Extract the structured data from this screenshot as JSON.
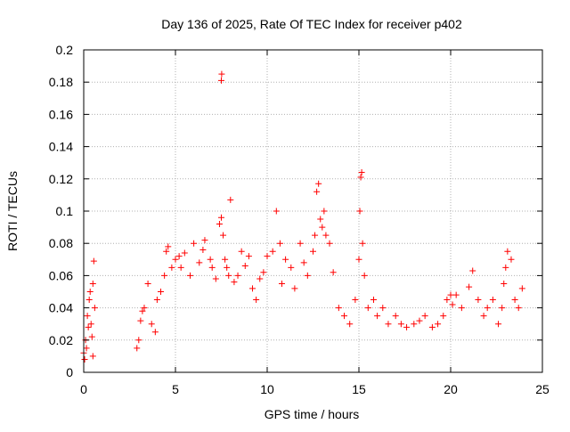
{
  "chart_data": {
    "type": "scatter",
    "title": "Day 136 of 2025, Rate Of TEC Index for receiver p402",
    "xlabel": "GPS time / hours",
    "ylabel": "ROTI / TECUs",
    "xlim": [
      0,
      25
    ],
    "ylim": [
      0,
      0.2
    ],
    "xticks": [
      0,
      5,
      10,
      15,
      20,
      25
    ],
    "yticks": [
      0,
      0.02,
      0.04,
      0.06,
      0.08,
      0.1,
      0.12,
      0.14,
      0.16,
      0.18,
      0.2
    ],
    "xtick_labels": [
      "0",
      "5",
      "10",
      "15",
      "20",
      "25"
    ],
    "ytick_labels": [
      "0",
      "0.02",
      "0.04",
      "0.06",
      "0.08",
      "0.1",
      "0.12",
      "0.14",
      "0.16",
      "0.18",
      "0.2"
    ],
    "grid": true,
    "marker": "+",
    "color": "#ff0000",
    "series": [
      {
        "x": [
          0.0,
          0.1,
          0.2,
          0.3,
          0.35,
          0.4,
          0.5,
          0.55,
          0.6,
          0.05,
          0.15,
          0.25,
          0.45,
          0.5,
          2.9,
          3.0,
          3.1,
          3.2,
          3.3,
          3.5,
          3.7,
          3.9,
          4.0,
          4.2,
          4.4,
          4.5,
          4.6,
          4.8,
          5.0,
          5.2,
          5.3,
          5.5,
          5.8,
          6.0,
          6.3,
          6.5,
          6.6,
          6.9,
          7.0,
          7.2,
          7.4,
          7.5,
          7.6,
          7.7,
          7.8,
          7.9,
          8.0,
          8.2,
          8.4,
          8.6,
          8.8,
          9.0,
          9.2,
          9.4,
          9.6,
          9.8,
          10.0,
          10.3,
          10.5,
          10.7,
          10.8,
          11.0,
          11.3,
          11.5,
          11.8,
          12.0,
          12.2,
          12.5,
          12.6,
          12.7,
          12.8,
          12.9,
          13.0,
          13.1,
          13.2,
          13.4,
          13.6,
          13.9,
          14.2,
          14.5,
          14.8,
          15.0,
          15.05,
          15.1,
          15.15,
          15.2,
          15.3,
          15.5,
          15.8,
          16.0,
          16.3,
          16.6,
          17.0,
          17.3,
          17.6,
          18.0,
          18.3,
          18.6,
          19.0,
          19.3,
          19.6,
          19.8,
          20.0,
          20.1,
          20.3,
          20.6,
          21.0,
          21.2,
          21.5,
          21.8,
          22.0,
          22.3,
          22.6,
          22.8,
          22.9,
          23.0,
          23.1,
          23.3,
          23.5,
          23.7,
          23.9
        ],
        "y": [
          0.012,
          0.02,
          0.035,
          0.045,
          0.05,
          0.03,
          0.055,
          0.069,
          0.04,
          0.008,
          0.015,
          0.028,
          0.022,
          0.01,
          0.015,
          0.02,
          0.032,
          0.038,
          0.04,
          0.055,
          0.03,
          0.025,
          0.045,
          0.05,
          0.06,
          0.075,
          0.078,
          0.065,
          0.07,
          0.072,
          0.065,
          0.074,
          0.06,
          0.08,
          0.068,
          0.076,
          0.082,
          0.07,
          0.065,
          0.058,
          0.092,
          0.096,
          0.085,
          0.07,
          0.065,
          0.06,
          0.107,
          0.056,
          0.06,
          0.075,
          0.066,
          0.072,
          0.052,
          0.045,
          0.058,
          0.062,
          0.072,
          0.075,
          0.1,
          0.08,
          0.055,
          0.07,
          0.065,
          0.052,
          0.08,
          0.068,
          0.06,
          0.075,
          0.085,
          0.112,
          0.117,
          0.095,
          0.09,
          0.1,
          0.085,
          0.08,
          0.062,
          0.04,
          0.035,
          0.03,
          0.045,
          0.07,
          0.1,
          0.121,
          0.124,
          0.08,
          0.06,
          0.04,
          0.045,
          0.035,
          0.04,
          0.03,
          0.035,
          0.03,
          0.028,
          0.03,
          0.032,
          0.035,
          0.028,
          0.03,
          0.035,
          0.045,
          0.048,
          0.042,
          0.048,
          0.04,
          0.053,
          0.063,
          0.045,
          0.035,
          0.04,
          0.045,
          0.03,
          0.04,
          0.055,
          0.065,
          0.075,
          0.07,
          0.045,
          0.04,
          0.052
        ]
      },
      {
        "x": [
          7.5,
          7.52
        ],
        "y": [
          0.181,
          0.185
        ]
      }
    ]
  }
}
